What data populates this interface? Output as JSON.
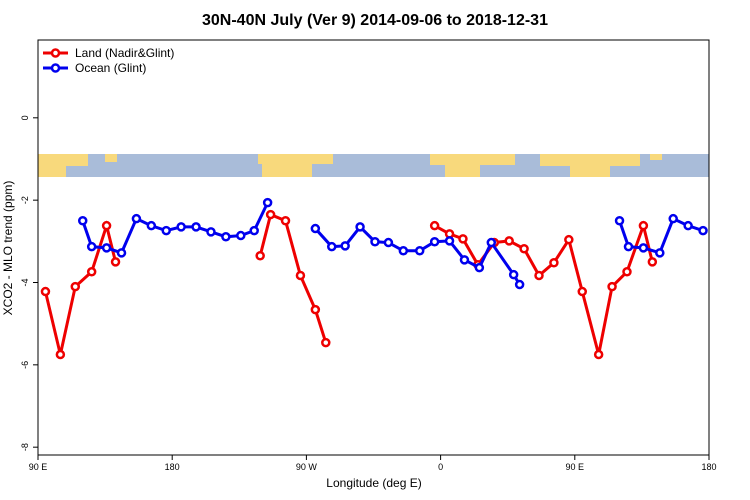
{
  "chart_data": {
    "type": "line",
    "title": "30N-40N July (Ver 9)   2014-09-06 to 2018-12-31",
    "x_label": "Longitude (deg E)",
    "y_label": "XCO2 - MLO trend (ppm)",
    "xlim": [
      90,
      540
    ],
    "xticks": [
      {
        "value": 90,
        "label": "90 E"
      },
      180,
      {
        "value": 270,
        "label": "90 W"
      },
      {
        "value": 360,
        "label": "0"
      },
      {
        "value": 450,
        "label": "90 E"
      },
      {
        "value": 540,
        "label": "180"
      }
    ],
    "ylim": [
      -8.19,
      1.89
    ],
    "yticks": [
      0,
      -2,
      -4,
      -6,
      -8
    ],
    "legend": "top-left",
    "series": [
      {
        "name": "Land (Nadir&Glint)",
        "color": "#ee0000",
        "x": [
          95,
          105,
          115,
          126,
          136,
          142,
          null,
          239,
          246,
          256,
          266,
          276,
          283,
          null,
          356,
          366,
          375,
          385,
          396,
          406,
          416,
          426,
          436,
          446,
          455,
          466,
          475,
          485,
          496,
          502
        ],
        "values": [
          -4.22,
          -5.75,
          -4.1,
          -3.74,
          -2.62,
          -3.5,
          null,
          -3.35,
          -2.35,
          -2.5,
          -3.83,
          -4.66,
          -5.46,
          null,
          -2.62,
          -2.82,
          -2.94,
          -3.57,
          -3.03,
          -2.99,
          -3.18,
          -3.83,
          -3.52,
          -2.96,
          -4.22,
          -5.75,
          -4.1,
          -3.74,
          -2.62,
          -3.5
        ]
      },
      {
        "name": "Ocean (Glint)",
        "color": "#0000ee",
        "x": [
          120,
          126,
          136,
          146,
          156,
          166,
          176,
          186,
          196,
          206,
          216,
          226,
          235,
          244,
          null,
          276,
          287,
          296,
          306,
          316,
          325,
          335,
          346,
          356,
          366,
          376,
          386,
          394,
          409,
          413,
          null,
          480,
          486,
          496,
          507,
          516,
          526,
          536
        ],
        "values": [
          -2.5,
          -3.13,
          -3.16,
          -3.28,
          -2.45,
          -2.62,
          -2.74,
          -2.65,
          -2.65,
          -2.77,
          -2.89,
          -2.86,
          -2.74,
          -2.06,
          null,
          -2.69,
          -3.13,
          -3.11,
          -2.65,
          -3.01,
          -3.03,
          -3.23,
          -3.23,
          -3.01,
          -2.99,
          -3.45,
          -3.64,
          -3.03,
          -3.81,
          -4.05,
          null,
          -2.5,
          -3.13,
          -3.16,
          -3.28,
          -2.45,
          -2.62,
          -2.74
        ]
      }
    ]
  }
}
